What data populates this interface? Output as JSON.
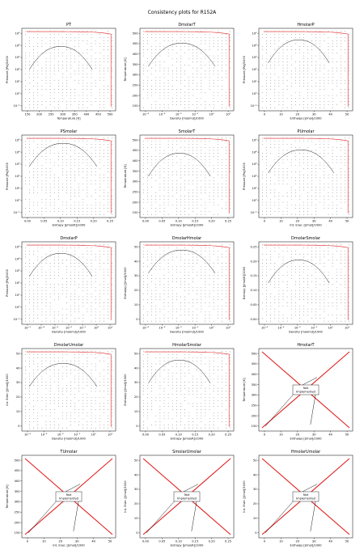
{
  "figure": {
    "title": "Consistency plots for R152A"
  },
  "chart_data": [
    {
      "title": "PT",
      "type": "scatter",
      "xlabel": "Temperature [K]",
      "ylabel": "Pressure [Pa]/1000",
      "xticks": [
        "150",
        "200",
        "250",
        "300",
        "350",
        "400",
        "450",
        "500"
      ],
      "yticks": [
        "10⁻¹",
        "10⁰",
        "10¹",
        "10²",
        "10³",
        "10⁴",
        "10⁵"
      ],
      "implemented": true
    },
    {
      "title": "DmolarT",
      "type": "scatter",
      "xlabel": "Density [mol/m3]/1000",
      "ylabel": "Temperature [K]",
      "xticks": [
        "10⁻⁴",
        "10⁻³",
        "10⁻²",
        "10⁻¹",
        "10⁰",
        "10¹"
      ],
      "yticks": [
        "150",
        "200",
        "250",
        "300",
        "350",
        "400",
        "450",
        "500"
      ],
      "implemented": true
    },
    {
      "title": "HmolarP",
      "type": "scatter",
      "xlabel": "Enthalpy [J/mol]/1000",
      "ylabel": "Pressure [Pa]/1000",
      "xticks": [
        "0",
        "10",
        "20",
        "30",
        "40",
        "50"
      ],
      "yticks": [
        "10⁻¹",
        "10⁰",
        "10¹",
        "10²",
        "10³",
        "10⁴",
        "10⁵"
      ],
      "implemented": true
    },
    {
      "title": "PSmolar",
      "type": "scatter",
      "xlabel": "Entropy [J/mol/K]/1000",
      "ylabel": "Pressure [Pa]/1000",
      "xticks": [
        "0.00",
        "0.05",
        "0.10",
        "0.15",
        "0.20",
        "0.25"
      ],
      "yticks": [
        "10⁻¹",
        "10⁰",
        "10¹",
        "10²",
        "10³",
        "10⁴",
        "10⁵"
      ],
      "implemented": true
    },
    {
      "title": "SmolarT",
      "type": "scatter",
      "xlabel": "Entropy [J/mol/K]/1000",
      "ylabel": "Temperature [K]",
      "xticks": [
        "0.00",
        "0.05",
        "0.10",
        "0.15",
        "0.20",
        "0.25"
      ],
      "yticks": [
        "150",
        "200",
        "250",
        "300",
        "350",
        "400",
        "450",
        "500"
      ],
      "implemented": true
    },
    {
      "title": "PUmolar",
      "type": "scatter",
      "xlabel": "Int. Ener. [J/mol]/1000",
      "ylabel": "Pressure [Pa]/1000",
      "xticks": [
        "0",
        "10",
        "20",
        "30",
        "40",
        "50"
      ],
      "yticks": [
        "10⁻¹",
        "10⁰",
        "10¹",
        "10²",
        "10³",
        "10⁴",
        "10⁵"
      ],
      "implemented": true
    },
    {
      "title": "DmolarP",
      "type": "scatter",
      "xlabel": "Density [mol/m3]/1000",
      "ylabel": "Pressure [Pa]/1000",
      "xticks": [
        "10⁻⁵",
        "10⁻⁴",
        "10⁻³",
        "10⁻²",
        "10⁻¹",
        "10⁰",
        "10¹"
      ],
      "yticks": [
        "10⁻¹",
        "10⁰",
        "10¹",
        "10²",
        "10³",
        "10⁴",
        "10⁵"
      ],
      "implemented": true
    },
    {
      "title": "DmolarHmolar",
      "type": "scatter",
      "xlabel": "Density [mol/m3]/1000",
      "ylabel": "Enthalpy [J/mol]/1000",
      "xticks": [
        "10⁻⁴",
        "10⁻³",
        "10⁻²",
        "10⁻¹",
        "10⁰",
        "10¹"
      ],
      "yticks": [
        "0",
        "10",
        "20",
        "30",
        "40",
        "50"
      ],
      "implemented": true
    },
    {
      "title": "DmolarSmolar",
      "type": "scatter",
      "xlabel": "Density [mol/m3]/1000",
      "ylabel": "Entropy [J/mol/K]/1000",
      "xticks": [
        "10⁻⁴",
        "10⁻³",
        "10⁻²",
        "10⁻¹",
        "10⁰",
        "10¹"
      ],
      "yticks": [
        "0.00",
        "0.05",
        "0.10",
        "0.15",
        "0.20",
        "0.25"
      ],
      "implemented": true
    },
    {
      "title": "DmolarUmolar",
      "type": "scatter",
      "xlabel": "Density [mol/m3]/1000",
      "ylabel": "Int. Ener. [J/mol]/1000",
      "xticks": [
        "10⁻⁴",
        "10⁻³",
        "10⁻²",
        "10⁻¹",
        "10⁰",
        "10¹"
      ],
      "yticks": [
        "0",
        "10",
        "20",
        "30",
        "40",
        "50"
      ],
      "implemented": true
    },
    {
      "title": "HmolarSmolar",
      "type": "scatter",
      "xlabel": "Entropy [J/mol/K]/1000",
      "ylabel": "Enthalpy [J/mol]/1000",
      "xticks": [
        "0.00",
        "0.05",
        "0.10",
        "0.15",
        "0.20",
        "0.25"
      ],
      "yticks": [
        "0",
        "10",
        "20",
        "30",
        "40",
        "50"
      ],
      "implemented": true
    },
    {
      "title": "HmolarT",
      "type": "line",
      "xlabel": "Enthalpy [J/mol]/1000",
      "ylabel": "Temperature [K]",
      "xticks": [
        "0",
        "10",
        "20",
        "30",
        "40",
        "50"
      ],
      "yticks": [
        "150",
        "200",
        "250",
        "300",
        "350",
        "400",
        "450",
        "500"
      ],
      "implemented": false,
      "annotation": "Not\nImplemented"
    },
    {
      "title": "TUmolar",
      "type": "line",
      "xlabel": "Int. Ener. [J/mol]/1000",
      "ylabel": "Temperature [K]",
      "xticks": [
        "0",
        "10",
        "20",
        "30",
        "40",
        "50"
      ],
      "yticks": [
        "150",
        "200",
        "250",
        "300",
        "350",
        "400",
        "450",
        "500"
      ],
      "implemented": false,
      "annotation": "Not\nImplemented"
    },
    {
      "title": "SmolarUmolar",
      "type": "line",
      "xlabel": "Entropy [J/mol/K]/1000",
      "ylabel": "Int. Ener. [J/mol]/1000",
      "xticks": [
        "0.00",
        "0.05",
        "0.10",
        "0.15",
        "0.20",
        "0.25"
      ],
      "yticks": [
        "0",
        "10",
        "20",
        "30",
        "40",
        "50"
      ],
      "implemented": false,
      "annotation": "Not\nImplemented"
    },
    {
      "title": "HmolarUmolar",
      "type": "line",
      "xlabel": "Enthalpy [J/mol]/1000",
      "ylabel": "Int. Ener. [J/mol]/1000",
      "xticks": [
        "0",
        "10",
        "20",
        "30",
        "40",
        "50"
      ],
      "yticks": [
        "0",
        "10",
        "20",
        "30",
        "40",
        "50"
      ],
      "implemented": false,
      "annotation": "Not\nImplemented"
    }
  ]
}
